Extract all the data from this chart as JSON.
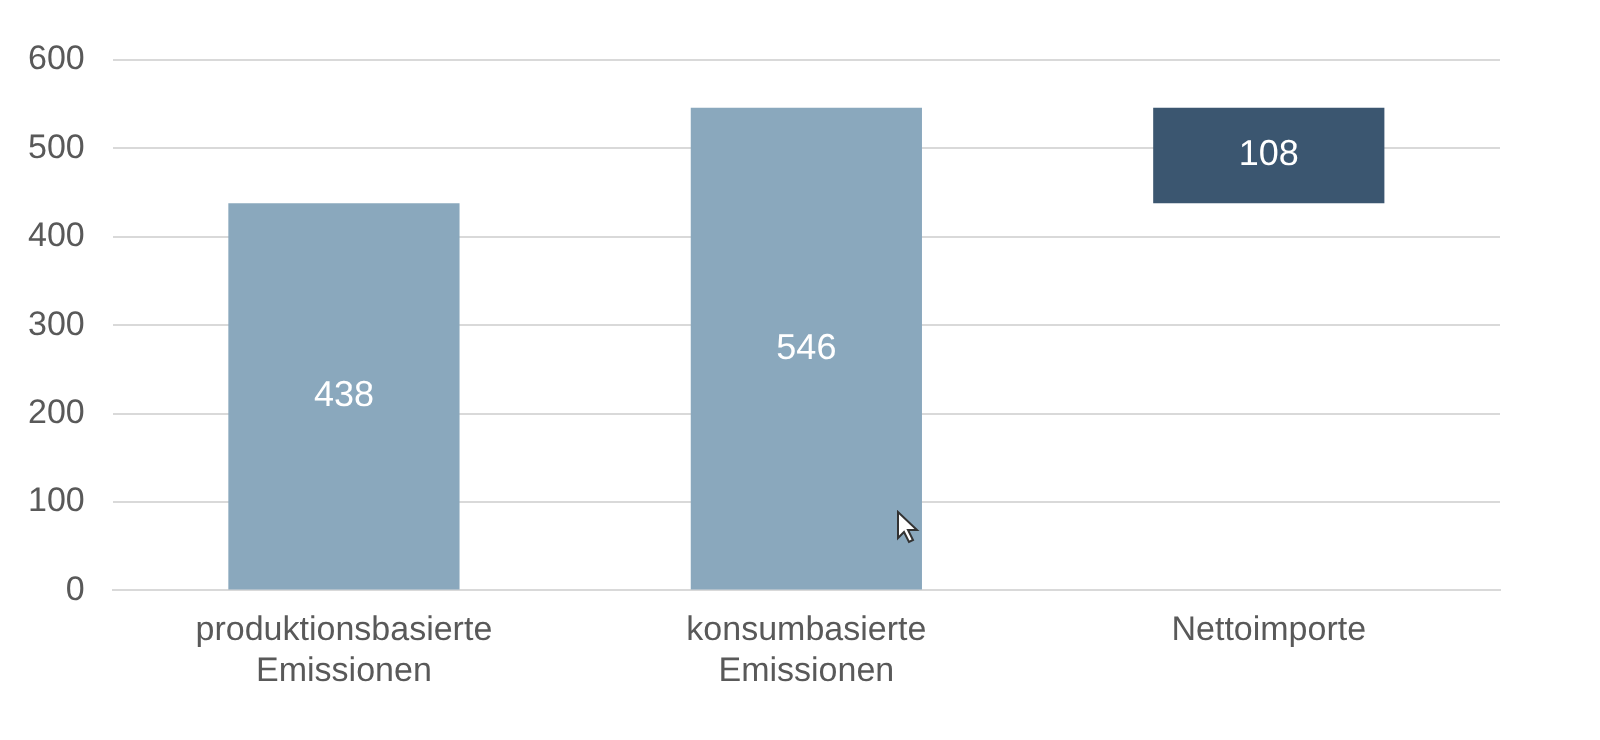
{
  "chart_data": {
    "type": "bar",
    "categories": [
      "produktionsbasierte Emissionen",
      "konsumbasierte Emissionen",
      "Nettoimporte"
    ],
    "values": [
      438,
      546,
      108
    ],
    "base": [
      0,
      0,
      438
    ],
    "colors": [
      "#8aa8bd",
      "#8aa8bd",
      "#3b5670"
    ],
    "ylim": [
      0,
      600
    ],
    "yticks": [
      0,
      100,
      200,
      300,
      400,
      500,
      600
    ],
    "grid": "y",
    "data_labels": true,
    "legend": false
  }
}
